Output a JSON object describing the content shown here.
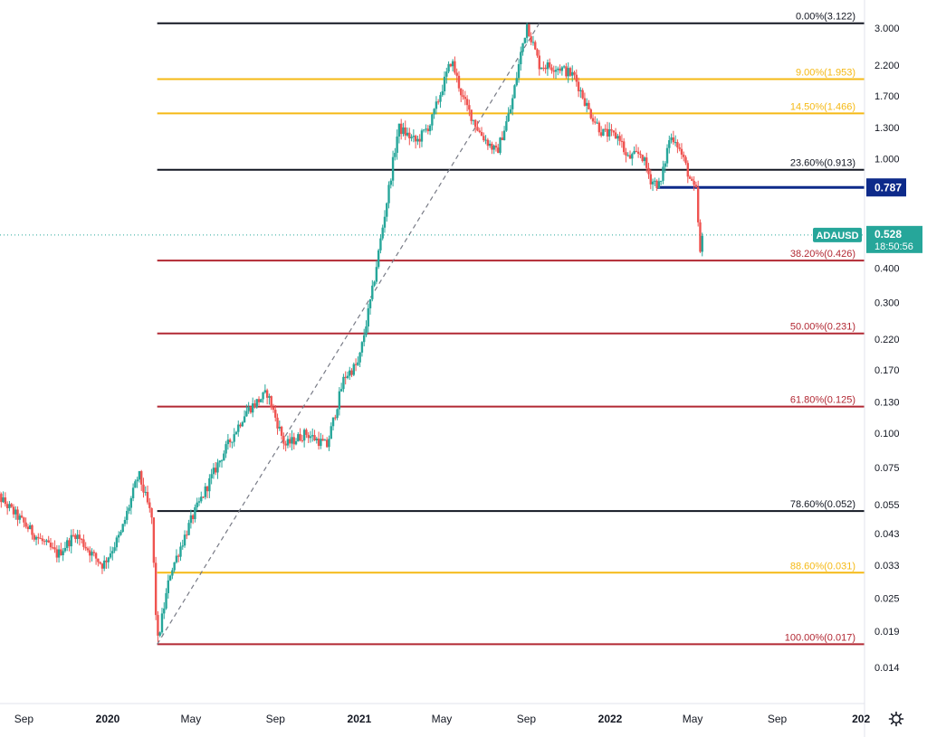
{
  "colors": {
    "background": "#ffffff",
    "up_candle": "#26a69a",
    "down_candle": "#ef5350",
    "fib_black": "#131722",
    "fib_gold": "#f5b915",
    "fib_red": "#b22833",
    "level_line": "#0d2a8a",
    "current_price_badge": "#26a69a",
    "trend_dashed": "#787b86"
  },
  "chart_data": {
    "type": "candlestick",
    "symbol": "ADAUSD",
    "scale": "log",
    "ylim": [
      0.0115,
      4.0
    ],
    "x_ticks": [
      {
        "label": "Sep",
        "date": "2019-09-01",
        "major": false
      },
      {
        "label": "2020",
        "date": "2020-01-01",
        "major": true
      },
      {
        "label": "May",
        "date": "2020-05-01",
        "major": false
      },
      {
        "label": "Sep",
        "date": "2020-09-01",
        "major": false
      },
      {
        "label": "2021",
        "date": "2021-01-01",
        "major": true
      },
      {
        "label": "May",
        "date": "2021-05-01",
        "major": false
      },
      {
        "label": "Sep",
        "date": "2021-09-01",
        "major": false
      },
      {
        "label": "2022",
        "date": "2022-01-01",
        "major": true
      },
      {
        "label": "May",
        "date": "2022-05-01",
        "major": false
      },
      {
        "label": "Sep",
        "date": "2022-09-01",
        "major": false
      },
      {
        "label": "202",
        "date": "2023-01-01",
        "major": true
      }
    ],
    "y_ticks": [
      "3.000",
      "2.200",
      "1.700",
      "1.300",
      "1.000",
      "0.400",
      "0.300",
      "0.220",
      "0.170",
      "0.130",
      "0.100",
      "0.075",
      "0.055",
      "0.043",
      "0.033",
      "0.025",
      "0.019",
      "0.014"
    ],
    "price_path": [
      {
        "date": "2019-07-15",
        "price": 0.063
      },
      {
        "date": "2019-09-15",
        "price": 0.043
      },
      {
        "date": "2019-10-20",
        "price": 0.036
      },
      {
        "date": "2019-11-15",
        "price": 0.043
      },
      {
        "date": "2019-12-10",
        "price": 0.036
      },
      {
        "date": "2019-12-25",
        "price": 0.033
      },
      {
        "date": "2020-01-20",
        "price": 0.043
      },
      {
        "date": "2020-02-15",
        "price": 0.071
      },
      {
        "date": "2020-03-05",
        "price": 0.049
      },
      {
        "date": "2020-03-13",
        "price": 0.017
      },
      {
        "date": "2020-04-01",
        "price": 0.031
      },
      {
        "date": "2020-05-01",
        "price": 0.048
      },
      {
        "date": "2020-06-10",
        "price": 0.078
      },
      {
        "date": "2020-07-20",
        "price": 0.12
      },
      {
        "date": "2020-08-20",
        "price": 0.14
      },
      {
        "date": "2020-09-15",
        "price": 0.09
      },
      {
        "date": "2020-10-15",
        "price": 0.1
      },
      {
        "date": "2020-11-15",
        "price": 0.09
      },
      {
        "date": "2020-12-10",
        "price": 0.16
      },
      {
        "date": "2020-12-31",
        "price": 0.18
      },
      {
        "date": "2021-01-20",
        "price": 0.33
      },
      {
        "date": "2021-02-10",
        "price": 0.7
      },
      {
        "date": "2021-02-27",
        "price": 1.3
      },
      {
        "date": "2021-03-25",
        "price": 1.15
      },
      {
        "date": "2021-04-15",
        "price": 1.35
      },
      {
        "date": "2021-05-15",
        "price": 2.3
      },
      {
        "date": "2021-06-01",
        "price": 1.65
      },
      {
        "date": "2021-06-25",
        "price": 1.25
      },
      {
        "date": "2021-07-20",
        "price": 1.05
      },
      {
        "date": "2021-08-10",
        "price": 1.55
      },
      {
        "date": "2021-08-25",
        "price": 2.5
      },
      {
        "date": "2021-09-02",
        "price": 3.1
      },
      {
        "date": "2021-09-20",
        "price": 2.2
      },
      {
        "date": "2021-10-20",
        "price": 2.15
      },
      {
        "date": "2021-11-10",
        "price": 2.0
      },
      {
        "date": "2021-12-01",
        "price": 1.5
      },
      {
        "date": "2021-12-20",
        "price": 1.25
      },
      {
        "date": "2022-01-15",
        "price": 1.2
      },
      {
        "date": "2022-01-25",
        "price": 1.0
      },
      {
        "date": "2022-02-15",
        "price": 1.05
      },
      {
        "date": "2022-03-01",
        "price": 0.84
      },
      {
        "date": "2022-03-15",
        "price": 0.8
      },
      {
        "date": "2022-03-28",
        "price": 1.18
      },
      {
        "date": "2022-04-05",
        "price": 1.2
      },
      {
        "date": "2022-04-20",
        "price": 0.96
      },
      {
        "date": "2022-04-30",
        "price": 0.8
      },
      {
        "date": "2022-05-06",
        "price": 0.76
      },
      {
        "date": "2022-05-12",
        "price": 0.45
      },
      {
        "date": "2022-05-16",
        "price": 0.528
      }
    ],
    "fib_levels": [
      {
        "label": "0.00%(3.122)",
        "price": 3.122,
        "color": "#131722"
      },
      {
        "label": "9.00%(1.953)",
        "price": 1.953,
        "color": "#f5b915"
      },
      {
        "label": "14.50%(1.466)",
        "price": 1.466,
        "color": "#f5b915"
      },
      {
        "label": "23.60%(0.913)",
        "price": 0.913,
        "color": "#131722"
      },
      {
        "label": "38.20%(0.426)",
        "price": 0.426,
        "color": "#b22833"
      },
      {
        "label": "50.00%(0.231)",
        "price": 0.231,
        "color": "#b22833"
      },
      {
        "label": "61.80%(0.125)",
        "price": 0.125,
        "color": "#b22833"
      },
      {
        "label": "78.60%(0.052)",
        "price": 0.052,
        "color": "#131722"
      },
      {
        "label": "88.60%(0.031)",
        "price": 0.031,
        "color": "#f5b915"
      },
      {
        "label": "100.00%(0.017)",
        "price": 0.017,
        "color": "#b22833"
      }
    ],
    "trend_line": {
      "from": {
        "date": "2020-03-13",
        "price": 0.017
      },
      "to": {
        "date": "2021-09-20",
        "price": 3.122
      }
    },
    "horizontal_level": {
      "price": 0.787,
      "label": "0.787",
      "from_date": "2022-03-10"
    },
    "current": {
      "symbol": "ADAUSD",
      "price": 0.528,
      "price_label": "0.528",
      "countdown": "18:50:56"
    }
  }
}
